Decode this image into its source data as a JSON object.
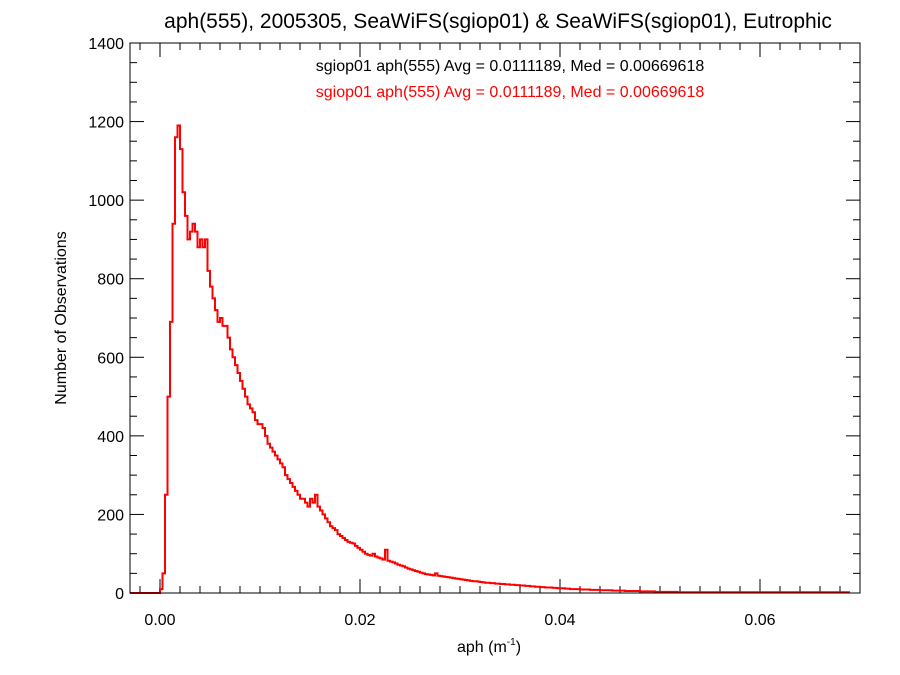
{
  "chart_data": {
    "type": "histogram",
    "title": "aph(555), 2005305, SeaWiFS(sgiop01) & SeaWiFS(sgiop01), Eutrophic",
    "xlabel_base": "aph (m",
    "xlabel_sup": "-1",
    "xlabel_end": ")",
    "ylabel": "Number of Observations",
    "xlim": [
      -0.003,
      0.07
    ],
    "ylim": [
      0,
      1400
    ],
    "x_ticks": [
      {
        "value": 0.0,
        "label": "0.00"
      },
      {
        "value": 0.02,
        "label": "0.02"
      },
      {
        "value": 0.04,
        "label": "0.04"
      },
      {
        "value": 0.06,
        "label": "0.06"
      }
    ],
    "y_ticks": [
      {
        "value": 0,
        "label": "0"
      },
      {
        "value": 200,
        "label": "200"
      },
      {
        "value": 400,
        "label": "400"
      },
      {
        "value": 600,
        "label": "600"
      },
      {
        "value": 800,
        "label": "800"
      },
      {
        "value": 1000,
        "label": "1000"
      },
      {
        "value": 1200,
        "label": "1200"
      },
      {
        "value": 1400,
        "label": "1400"
      }
    ],
    "x_minor_step": 0.002,
    "y_minor_step": 50,
    "annotations": [
      {
        "text": "sgiop01 aph(555) Avg = 0.0111189, Med = 0.00669618",
        "color": "#000000"
      },
      {
        "text": "sgiop01 aph(555) Avg = 0.0111189, Med = 0.00669618",
        "color": "#ff0000"
      }
    ],
    "series": [
      {
        "color": "#ff0000",
        "bin_start": 0.0,
        "bin_width": 0.00025,
        "values": [
          10,
          50,
          250,
          500,
          690,
          940,
          1160,
          1190,
          1130,
          1020,
          960,
          900,
          920,
          940,
          920,
          880,
          900,
          880,
          900,
          820,
          780,
          750,
          720,
          690,
          700,
          680,
          680,
          650,
          620,
          600,
          580,
          560,
          540,
          520,
          500,
          480,
          470,
          460,
          440,
          430,
          430,
          420,
          400,
          380,
          370,
          360,
          350,
          340,
          330,
          320,
          300,
          290,
          280,
          270,
          260,
          250,
          240,
          240,
          230,
          220,
          240,
          230,
          250,
          220,
          210,
          200,
          190,
          180,
          170,
          165,
          160,
          150,
          145,
          140,
          135,
          130,
          128,
          126,
          120,
          115,
          110,
          105,
          100,
          97,
          95,
          100,
          93,
          90,
          88,
          85,
          110,
          82,
          80,
          78,
          75,
          72,
          70,
          68,
          65,
          62,
          60,
          58,
          56,
          54,
          52,
          50,
          48,
          47,
          46,
          45,
          50,
          44,
          43,
          42,
          41,
          40,
          39,
          38,
          37,
          36,
          35,
          34,
          33,
          32,
          31,
          30,
          30,
          29,
          28,
          27,
          26,
          26,
          25,
          25,
          24,
          24,
          23,
          23,
          22,
          22,
          21,
          21,
          20,
          20,
          19,
          19,
          18,
          18,
          17,
          17,
          16,
          16,
          15,
          15,
          14,
          14,
          14,
          13,
          13,
          12,
          12,
          12,
          11,
          11,
          10,
          10,
          10,
          10,
          9,
          9,
          9,
          9,
          8,
          8,
          8,
          8,
          7,
          7,
          7,
          7,
          7,
          6,
          6,
          6,
          6,
          6,
          5,
          5,
          5,
          5,
          5,
          5,
          4,
          4,
          4,
          4,
          4,
          4,
          3,
          3,
          3,
          3,
          3,
          3,
          3,
          3,
          3,
          2,
          2,
          2,
          2,
          2,
          2,
          2,
          2,
          2,
          2,
          2,
          2,
          2,
          2,
          2,
          2,
          2,
          2,
          2,
          2,
          2,
          2,
          2,
          2,
          2,
          2,
          2,
          2,
          2,
          2,
          2,
          2,
          2,
          2,
          2,
          2,
          2,
          2,
          2,
          2,
          2,
          2,
          2,
          2,
          2,
          2,
          2,
          2,
          2,
          2,
          2,
          2,
          2,
          2,
          2,
          2,
          2,
          2,
          2,
          2,
          2,
          2,
          2,
          2,
          2,
          2,
          2,
          2,
          2
        ]
      }
    ]
  }
}
